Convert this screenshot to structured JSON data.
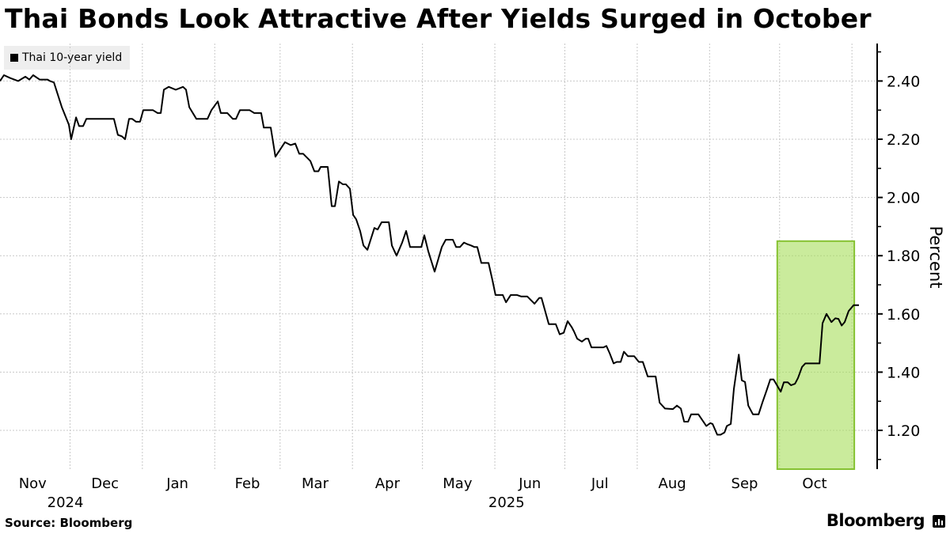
{
  "chart_data": {
    "type": "line",
    "title": "Thai Bonds Look Attractive After Yields Surged in October",
    "ylabel": "Percent",
    "xlabel": "",
    "x_unit": "days since 2024-11-01",
    "xlim": [
      0,
      368
    ],
    "ylim": [
      1.06,
      2.53
    ],
    "yticks": [
      1.2,
      1.4,
      1.6,
      1.8,
      2.0,
      2.2,
      2.4
    ],
    "ytick_labels": [
      "1.20",
      "1.40",
      "1.60",
      "1.80",
      "2.00",
      "2.20",
      "2.40"
    ],
    "yminor_ticks": [
      1.1,
      1.3,
      1.5,
      1.7,
      1.9,
      2.1,
      2.3,
      2.5
    ],
    "grid": true,
    "month_starts": [
      30,
      61,
      92,
      120,
      151,
      181,
      212,
      242,
      273,
      304,
      334,
      365
    ],
    "month_labels": [
      {
        "label": "Nov",
        "day": 14
      },
      {
        "label": "Dec",
        "day": 45
      },
      {
        "label": "Jan",
        "day": 76
      },
      {
        "label": "Feb",
        "day": 106
      },
      {
        "label": "Mar",
        "day": 135
      },
      {
        "label": "Apr",
        "day": 166
      },
      {
        "label": "May",
        "day": 196
      },
      {
        "label": "Jun",
        "day": 227
      },
      {
        "label": "Jul",
        "day": 257
      },
      {
        "label": "Aug",
        "day": 288
      },
      {
        "label": "Sep",
        "day": 319
      },
      {
        "label": "Oct",
        "day": 349
      }
    ],
    "year_labels": [
      {
        "label": "2024",
        "day": 28
      },
      {
        "label": "2025",
        "day": 217
      }
    ],
    "legend": {
      "position": "top-left",
      "entries": [
        "Thai 10-year yield"
      ]
    },
    "highlight": {
      "x": [
        333,
        366
      ],
      "y_top": 1.85,
      "color": "#a6dd5a"
    },
    "series": [
      {
        "name": "Thai 10-year yield",
        "color": "#000000",
        "points": [
          [
            0,
            2.4
          ],
          [
            1.7,
            2.42
          ],
          [
            4.4,
            2.41
          ],
          [
            7.8,
            2.4
          ],
          [
            10.9,
            2.415
          ],
          [
            12.6,
            2.405
          ],
          [
            14.2,
            2.42
          ],
          [
            17,
            2.405
          ],
          [
            20.4,
            2.405
          ],
          [
            21.4,
            2.4
          ],
          [
            23.1,
            2.395
          ],
          [
            26.5,
            2.31
          ],
          [
            29.5,
            2.25
          ],
          [
            30.5,
            2.2
          ],
          [
            32.6,
            2.275
          ],
          [
            33.9,
            2.245
          ],
          [
            35.6,
            2.245
          ],
          [
            37,
            2.27
          ],
          [
            40,
            2.27
          ],
          [
            48.8,
            2.27
          ],
          [
            50.5,
            2.215
          ],
          [
            52.2,
            2.21
          ],
          [
            53.6,
            2.2
          ],
          [
            55.3,
            2.27
          ],
          [
            56.6,
            2.27
          ],
          [
            58.3,
            2.26
          ],
          [
            60,
            2.26
          ],
          [
            61.4,
            2.3
          ],
          [
            65.5,
            2.3
          ],
          [
            67.5,
            2.29
          ],
          [
            68.9,
            2.29
          ],
          [
            70.2,
            2.37
          ],
          [
            72.3,
            2.38
          ],
          [
            75.3,
            2.37
          ],
          [
            78.4,
            2.38
          ],
          [
            79.7,
            2.37
          ],
          [
            81.1,
            2.31
          ],
          [
            84.1,
            2.27
          ],
          [
            88.9,
            2.27
          ],
          [
            90.6,
            2.3
          ],
          [
            93.3,
            2.33
          ],
          [
            94.6,
            2.29
          ],
          [
            97.4,
            2.29
          ],
          [
            99.7,
            2.27
          ],
          [
            101.1,
            2.27
          ],
          [
            102.8,
            2.3
          ],
          [
            106.9,
            2.3
          ],
          [
            108.9,
            2.29
          ],
          [
            111.9,
            2.29
          ],
          [
            113,
            2.24
          ],
          [
            116,
            2.24
          ],
          [
            118,
            2.14
          ],
          [
            122.1,
            2.19
          ],
          [
            124.5,
            2.18
          ],
          [
            126.5,
            2.185
          ],
          [
            128.2,
            2.15
          ],
          [
            129.9,
            2.15
          ],
          [
            133,
            2.125
          ],
          [
            134.7,
            2.09
          ],
          [
            136.4,
            2.09
          ],
          [
            137.4,
            2.105
          ],
          [
            140.4,
            2.105
          ],
          [
            142.1,
            1.97
          ],
          [
            143.5,
            1.97
          ],
          [
            145.2,
            2.055
          ],
          [
            146.9,
            2.045
          ],
          [
            148.2,
            2.045
          ],
          [
            149.9,
            2.03
          ],
          [
            151.3,
            1.94
          ],
          [
            152.6,
            1.925
          ],
          [
            154.3,
            1.885
          ],
          [
            155.7,
            1.835
          ],
          [
            157.4,
            1.82
          ],
          [
            160.4,
            1.895
          ],
          [
            161.8,
            1.89
          ],
          [
            163.5,
            1.915
          ],
          [
            166.6,
            1.915
          ],
          [
            167.9,
            1.835
          ],
          [
            169.9,
            1.8
          ],
          [
            172.3,
            1.845
          ],
          [
            174,
            1.885
          ],
          [
            175.7,
            1.83
          ],
          [
            180.5,
            1.83
          ],
          [
            181.8,
            1.87
          ],
          [
            183.5,
            1.815
          ],
          [
            186.2,
            1.745
          ],
          [
            189.3,
            1.83
          ],
          [
            191,
            1.855
          ],
          [
            194,
            1.855
          ],
          [
            195.4,
            1.83
          ],
          [
            197.1,
            1.83
          ],
          [
            198.8,
            1.845
          ],
          [
            200.1,
            1.84
          ],
          [
            201.8,
            1.835
          ],
          [
            203.2,
            1.83
          ],
          [
            204.5,
            1.83
          ],
          [
            206.2,
            1.775
          ],
          [
            209.3,
            1.775
          ],
          [
            211,
            1.715
          ],
          [
            212.3,
            1.665
          ],
          [
            215.4,
            1.665
          ],
          [
            216.8,
            1.64
          ],
          [
            218.8,
            1.665
          ],
          [
            221.5,
            1.665
          ],
          [
            223.2,
            1.66
          ],
          [
            225.9,
            1.66
          ],
          [
            229,
            1.635
          ],
          [
            231,
            1.655
          ],
          [
            232,
            1.655
          ],
          [
            235.1,
            1.565
          ],
          [
            238.1,
            1.565
          ],
          [
            239.8,
            1.53
          ],
          [
            241.5,
            1.535
          ],
          [
            243.2,
            1.575
          ],
          [
            244.9,
            1.555
          ],
          [
            245.9,
            1.54
          ],
          [
            247.3,
            1.515
          ],
          [
            249.3,
            1.505
          ],
          [
            251,
            1.515
          ],
          [
            252,
            1.515
          ],
          [
            253.4,
            1.485
          ],
          [
            258.5,
            1.485
          ],
          [
            259.8,
            1.49
          ],
          [
            261.2,
            1.465
          ],
          [
            262.9,
            1.43
          ],
          [
            264.2,
            1.435
          ],
          [
            265.9,
            1.435
          ],
          [
            267.3,
            1.47
          ],
          [
            269,
            1.455
          ],
          [
            271.7,
            1.455
          ],
          [
            273.7,
            1.435
          ],
          [
            275.4,
            1.435
          ],
          [
            277.5,
            1.385
          ],
          [
            280.9,
            1.385
          ],
          [
            282.6,
            1.295
          ],
          [
            284.9,
            1.275
          ],
          [
            288.3,
            1.273
          ],
          [
            290,
            1.285
          ],
          [
            291.7,
            1.275
          ],
          [
            293.1,
            1.23
          ],
          [
            294.8,
            1.23
          ],
          [
            296.1,
            1.255
          ],
          [
            299.2,
            1.255
          ],
          [
            302.6,
            1.215
          ],
          [
            304.3,
            1.225
          ],
          [
            305.3,
            1.222
          ],
          [
            307.3,
            1.185
          ],
          [
            308.7,
            1.185
          ],
          [
            310.4,
            1.193
          ],
          [
            311.4,
            1.215
          ],
          [
            313.1,
            1.222
          ],
          [
            314.4,
            1.342
          ],
          [
            316.5,
            1.46
          ],
          [
            317.8,
            1.372
          ],
          [
            319.2,
            1.366
          ],
          [
            320.6,
            1.285
          ],
          [
            322.6,
            1.255
          ],
          [
            325,
            1.255
          ],
          [
            326.7,
            1.297
          ],
          [
            328.4,
            1.336
          ],
          [
            330,
            1.375
          ],
          [
            331.4,
            1.375
          ],
          [
            334.5,
            1.333
          ],
          [
            335.8,
            1.365
          ],
          [
            337.5,
            1.365
          ],
          [
            338.9,
            1.355
          ],
          [
            340.6,
            1.36
          ],
          [
            341.9,
            1.38
          ],
          [
            343.6,
            1.418
          ],
          [
            345,
            1.43
          ],
          [
            351.1,
            1.43
          ],
          [
            352.4,
            1.568
          ],
          [
            354.1,
            1.6
          ],
          [
            356.2,
            1.572
          ],
          [
            357.9,
            1.585
          ],
          [
            359.2,
            1.583
          ],
          [
            360.6,
            1.56
          ],
          [
            361.9,
            1.572
          ],
          [
            363.6,
            1.61
          ],
          [
            365.7,
            1.63
          ],
          [
            368,
            1.63
          ]
        ]
      }
    ]
  },
  "footer": {
    "source": "Source: Bloomberg",
    "brand": "Bloomberg"
  }
}
